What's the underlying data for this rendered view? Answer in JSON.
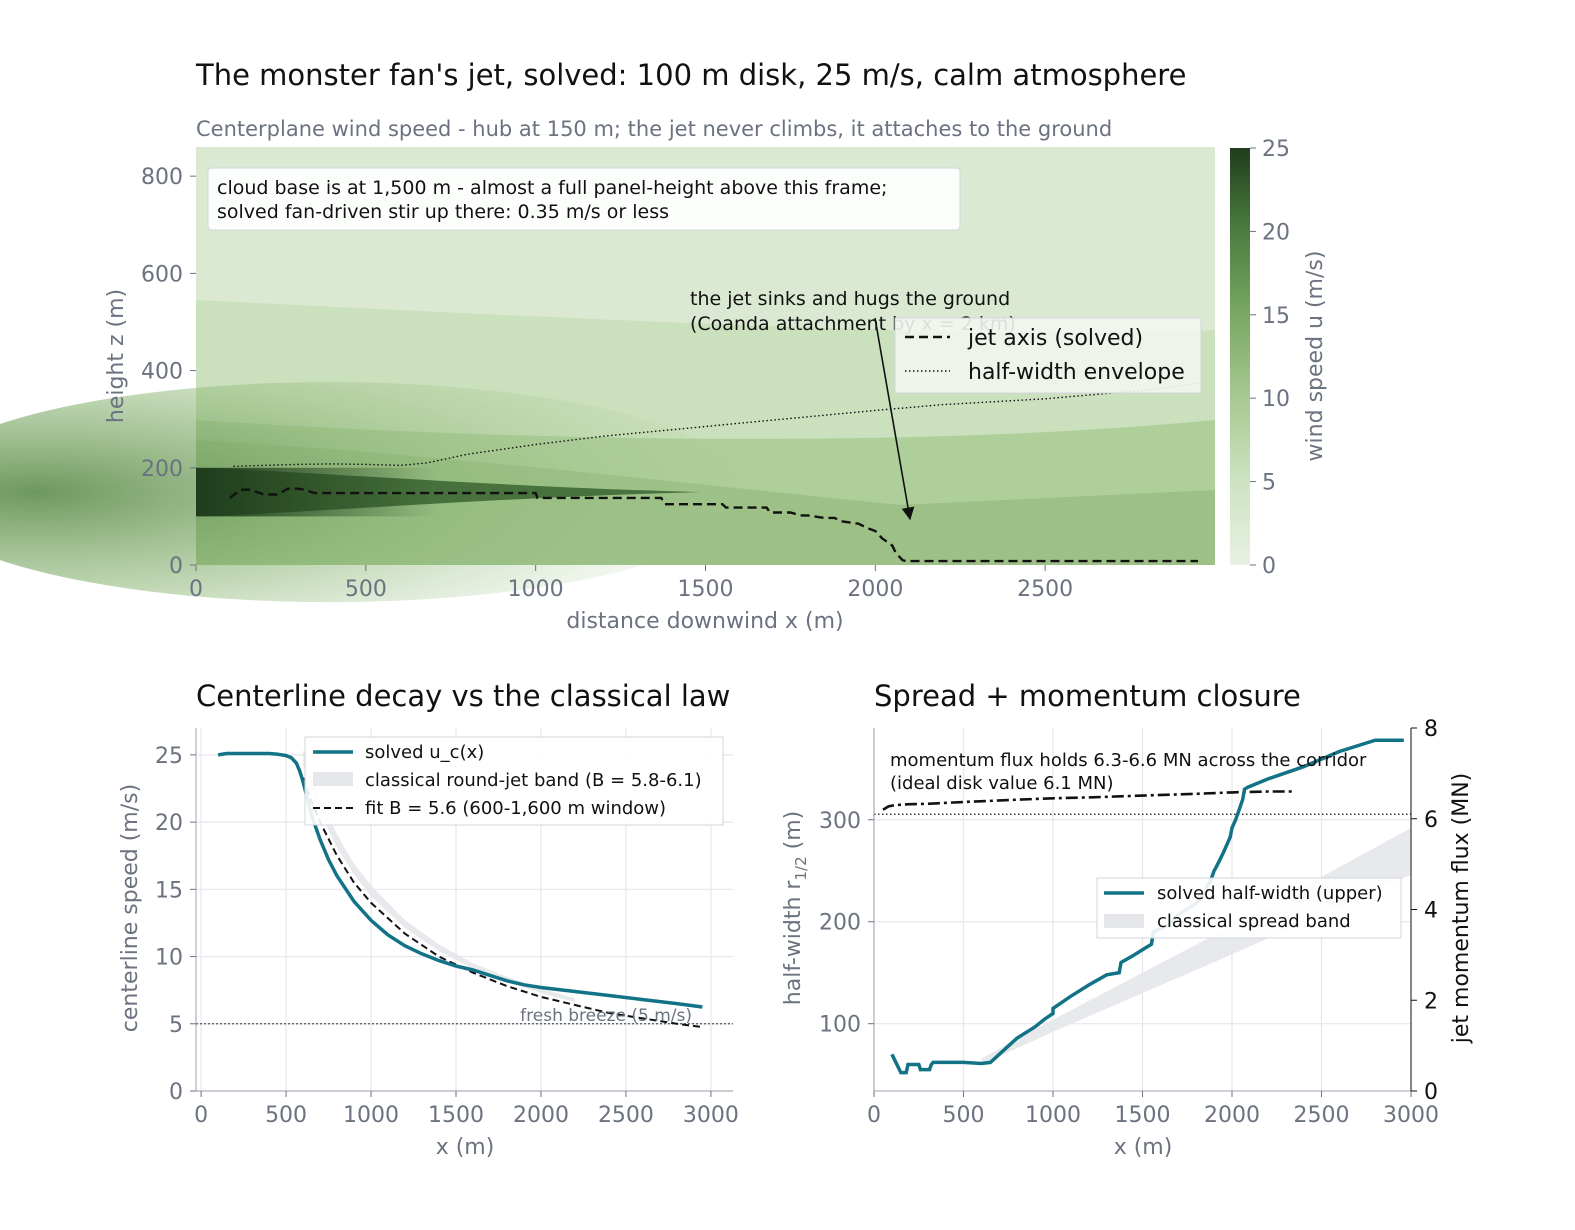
{
  "figure": {
    "title": "The monster fan's jet, solved: 100 m disk, 25 m/s, calm atmosphere",
    "subtitle": "Centerplane wind speed - hub at 150 m; the jet never climbs, it attaches to the ground"
  },
  "chart_data": [
    {
      "type": "heatmap",
      "xlabel": "distance downwind x (m)",
      "ylabel": "height z (m)",
      "xlim": [
        0,
        3000
      ],
      "ylim": [
        0,
        860
      ],
      "x_ticks": [
        0,
        500,
        1000,
        1500,
        2000,
        2500
      ],
      "y_ticks": [
        0,
        200,
        400,
        600,
        800
      ],
      "colorbar": {
        "label": "wind speed u (m/s)",
        "ticks": [
          0,
          5,
          10,
          15,
          20,
          25
        ],
        "range": [
          0,
          25
        ],
        "color_low": "#e8f1e2",
        "color_high": "#1f3d1c"
      },
      "rotor": {
        "z_bottom": 100,
        "z_top": 200,
        "speed": 25
      },
      "series": [
        {
          "name": "jet axis (solved)",
          "style": "dashed",
          "x": [
            100,
            130,
            160,
            200,
            240,
            270,
            300,
            320,
            340,
            350,
            400,
            500,
            550,
            600,
            700,
            800,
            900,
            1000,
            1005,
            1100,
            1200,
            1300,
            1370,
            1380,
            1450,
            1550,
            1560,
            1650,
            1680,
            1690,
            1750,
            1780,
            1800,
            1850,
            1880,
            1900,
            1950,
            1980,
            2000,
            2020,
            2050,
            2060,
            2080,
            2090,
            2200,
            2500,
            2800,
            2950
          ],
          "y": [
            138,
            155,
            155,
            145,
            145,
            157,
            157,
            155,
            150,
            148,
            148,
            148,
            148,
            148,
            148,
            148,
            148,
            148,
            138,
            138,
            138,
            138,
            138,
            125,
            125,
            125,
            118,
            118,
            118,
            108,
            108,
            102,
            102,
            97,
            97,
            90,
            85,
            75,
            70,
            55,
            40,
            25,
            10,
            8,
            8,
            8,
            8,
            8
          ]
        },
        {
          "name": "half-width envelope",
          "style": "dotted",
          "x": [
            110,
            200,
            300,
            400,
            500,
            600,
            680,
            800,
            1000,
            1200,
            1500,
            1800,
            2000,
            2200,
            2500,
            2800,
            2960
          ],
          "y": [
            203,
            205,
            207,
            208,
            207,
            205,
            210,
            228,
            248,
            265,
            285,
            305,
            318,
            330,
            342,
            360,
            375
          ]
        }
      ],
      "info_box": [
        "cloud base is at 1,500 m - almost a full panel-height above this frame;",
        "solved fan-driven stir up there: 0.35 m/s or less"
      ],
      "annotation": {
        "lines": [
          "the jet sinks and hugs the ground",
          "(Coanda attachment by x = 2 km)"
        ],
        "arrow_to": [
          2100,
          90
        ]
      },
      "legend": "upper-right"
    },
    {
      "type": "line",
      "title": "Centerline decay vs the classical law",
      "xlabel": "x (m)",
      "ylabel": "centerline speed (m/s)",
      "xlim": [
        -30,
        3130
      ],
      "ylim": [
        0,
        27
      ],
      "x_ticks": [
        0,
        500,
        1000,
        1500,
        2000,
        2500,
        3000
      ],
      "y_ticks": [
        0,
        5,
        10,
        15,
        20,
        25
      ],
      "grid": true,
      "series": [
        {
          "name": "solved u_c(x)",
          "x": [
            100,
            150,
            200,
            300,
            400,
            450,
            500,
            530,
            560,
            580,
            600,
            620,
            650,
            700,
            750,
            800,
            900,
            1000,
            1100,
            1200,
            1300,
            1400,
            1500,
            1600,
            1700,
            1800,
            1900,
            2000,
            2200,
            2400,
            2600,
            2800,
            2950
          ],
          "y": [
            25.0,
            25.1,
            25.1,
            25.1,
            25.1,
            25.05,
            24.95,
            24.8,
            24.4,
            23.8,
            23.0,
            22.0,
            20.5,
            18.7,
            17.2,
            16.0,
            14.1,
            12.7,
            11.6,
            10.8,
            10.2,
            9.7,
            9.3,
            9.0,
            8.6,
            8.2,
            7.9,
            7.7,
            7.4,
            7.1,
            6.8,
            6.5,
            6.25
          ]
        },
        {
          "name": "classical round-jet band (B = 5.8-6.1)",
          "x": [
            600,
            700,
            800,
            900,
            1000,
            1200,
            1400,
            1600,
            1800,
            2000,
            2200
          ],
          "lower": [
            24.2,
            20.7,
            18.1,
            16.1,
            14.5,
            12.1,
            10.4,
            9.1,
            8.1,
            7.3,
            6.6
          ],
          "upper": [
            25.4,
            21.8,
            19.1,
            16.9,
            15.3,
            12.7,
            10.9,
            9.5,
            8.5,
            7.6,
            6.9
          ]
        },
        {
          "name": "fit B = 5.6 (600-1,600 m window)",
          "style": "dashed",
          "x": [
            600,
            650,
            700,
            800,
            900,
            1000,
            1200,
            1400,
            1600,
            1800,
            2000,
            2200,
            2400,
            2600,
            2800,
            2950
          ],
          "y": [
            23.3,
            21.5,
            20.0,
            17.5,
            15.5,
            14.0,
            11.7,
            10.0,
            8.8,
            7.8,
            7.0,
            6.4,
            5.8,
            5.4,
            5.0,
            4.75
          ]
        }
      ],
      "reference_line": {
        "y": 5,
        "label": "fresh breeze (5 m/s)"
      },
      "legend": "top-right"
    },
    {
      "type": "line",
      "title": "Spread + momentum closure",
      "xlabel": "x (m)",
      "ylabel": "half-width r",
      "ylabel_sub": "1/2",
      "ylabel_unit": " (m)",
      "ylabel_right": "jet momentum flux (MN)",
      "xlim": [
        0,
        3000
      ],
      "ylim": [
        34,
        390
      ],
      "ylim_right": [
        0,
        8
      ],
      "x_ticks": [
        0,
        500,
        1000,
        1500,
        2000,
        2500,
        3000
      ],
      "y_ticks": [
        100,
        200,
        300
      ],
      "y_ticks_right": [
        0,
        2,
        4,
        6,
        8
      ],
      "grid": true,
      "series": [
        {
          "name": "solved half-width (upper)",
          "x": [
            100,
            150,
            180,
            190,
            250,
            260,
            290,
            310,
            320,
            330,
            400,
            500,
            600,
            650,
            700,
            750,
            800,
            900,
            950,
            1000,
            1000,
            1100,
            1200,
            1300,
            1370,
            1380,
            1450,
            1550,
            1560,
            1650,
            1700,
            1800,
            1850,
            1860,
            1880,
            1890,
            1900,
            1910,
            1930,
            1950,
            1970,
            1990,
            2000,
            2020,
            2040,
            2060,
            2070,
            2090,
            2200,
            2400,
            2600,
            2800,
            2960
          ],
          "y": [
            70,
            52,
            52,
            60,
            60,
            55,
            55,
            55,
            60,
            62,
            62,
            62,
            61,
            62,
            70,
            78,
            86,
            97,
            104,
            110,
            115,
            127,
            138,
            148,
            150,
            160,
            167,
            178,
            190,
            197,
            207,
            218,
            228,
            235,
            240,
            245,
            250,
            253,
            260,
            267,
            275,
            283,
            292,
            300,
            310,
            320,
            330,
            332,
            340,
            352,
            367,
            382,
            398
          ]
        },
        {
          "name": "classical spread band",
          "x": [
            600,
            1000,
            1500,
            2000,
            2500,
            3000
          ],
          "lower": [
            60,
            92,
            130,
            168,
            207,
            246
          ],
          "upper": [
            66,
            104,
            150,
            196,
            244,
            292
          ]
        },
        {
          "name": "momentum flux",
          "axis": "right",
          "style": "dashdot",
          "x": [
            50,
            80,
            100,
            150,
            200,
            300,
            500,
            800,
            1000,
            1200,
            1500,
            1800,
            2000,
            2200,
            2350
          ],
          "y": [
            6.2,
            6.27,
            6.29,
            6.31,
            6.32,
            6.33,
            6.37,
            6.42,
            6.45,
            6.47,
            6.51,
            6.55,
            6.58,
            6.6,
            6.6
          ]
        }
      ],
      "reference_line": {
        "axis": "right",
        "y": 6.1
      },
      "annotation": [
        "momentum flux holds 6.3-6.6 MN across the corridor",
        "(ideal disk value 6.1 MN)"
      ],
      "legend": "center-right"
    }
  ],
  "colors": {
    "solved": "#127387",
    "band": "#e5e7eb",
    "ink": "#111111",
    "muted": "#6b7280",
    "ref": "#4b5563"
  }
}
